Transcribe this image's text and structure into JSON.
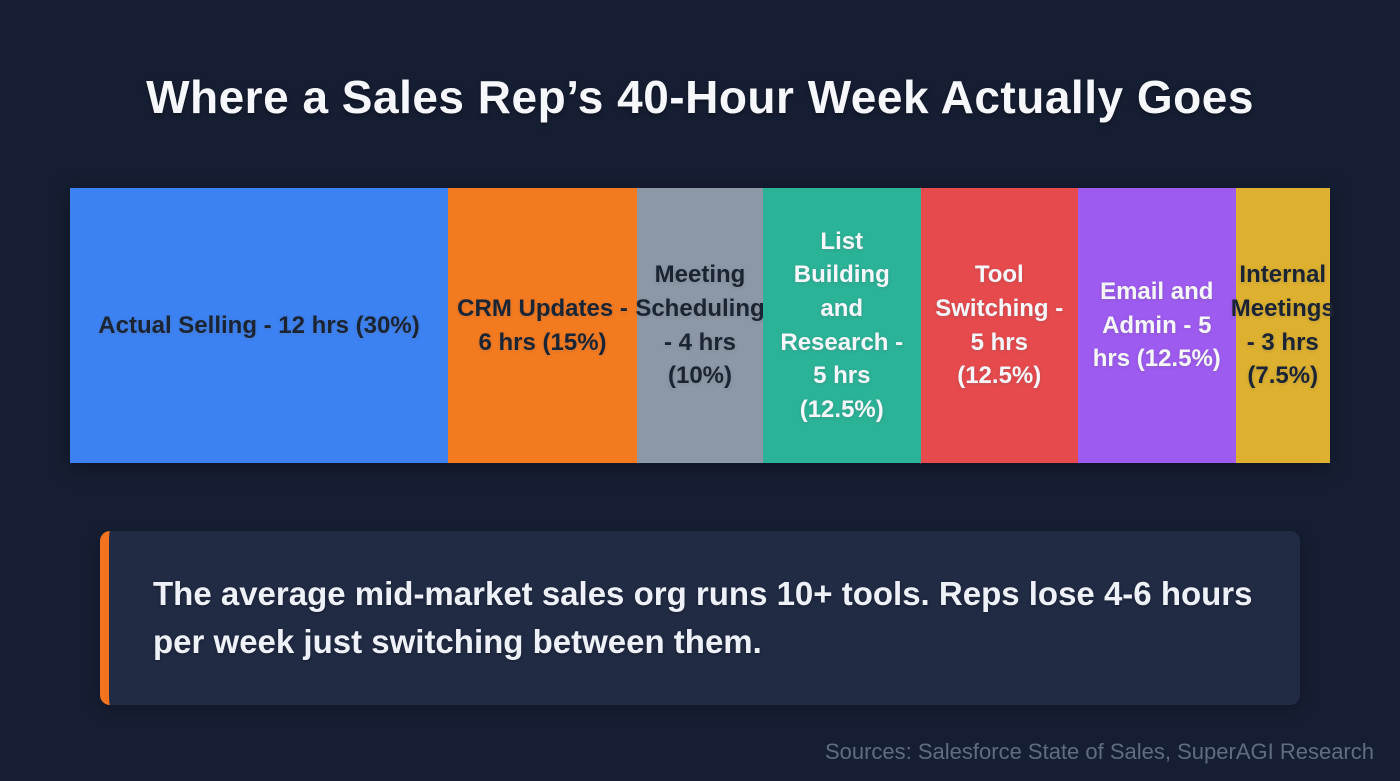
{
  "page": {
    "title": "Where a Sales Rep’s 40-Hour Week Actually Goes",
    "sources": "Sources: Salesforce State of Sales, SuperAGI Research"
  },
  "callout": {
    "text": "The average mid-market sales org runs 10+ tools. Reps lose 4-6 hours per week just switching between them.",
    "accent_color": "#f4731f"
  },
  "chart_data": {
    "type": "bar",
    "variant": "100-percent-stacked-horizontal",
    "title": "Where a Sales Rep’s 40-Hour Week Actually Goes",
    "total_hours": 40,
    "unit": "hours",
    "legend": "labels-inside-segments",
    "segments": [
      {
        "category": "Actual Selling",
        "label": "Actual Selling - 12 hrs (30%)",
        "hours": 12,
        "percent": 30,
        "color": "#3d82f2",
        "text_color": "#1a2433"
      },
      {
        "category": "CRM Updates",
        "label": "CRM Updates - 6 hrs (15%)",
        "hours": 6,
        "percent": 15,
        "color": "#f47a20",
        "text_color": "#1a2433"
      },
      {
        "category": "Meeting Scheduling",
        "label": "Meeting Scheduling - 4 hrs (10%)",
        "hours": 4,
        "percent": 10,
        "color": "#8d98a7",
        "text_color": "#1a2433"
      },
      {
        "category": "List Building and Research",
        "label": "List Building and Research - 5 hrs (12.5%)",
        "hours": 5,
        "percent": 12.5,
        "color": "#2bb398",
        "text_color": "#f5f7fa"
      },
      {
        "category": "Tool Switching",
        "label": "Tool Switching - 5 hrs (12.5%)",
        "hours": 5,
        "percent": 12.5,
        "color": "#e64a4d",
        "text_color": "#f5f7fa"
      },
      {
        "category": "Email and Admin",
        "label": "Email and Admin - 5 hrs (12.5%)",
        "hours": 5,
        "percent": 12.5,
        "color": "#9e5bf0",
        "text_color": "#f5f7fa"
      },
      {
        "category": "Internal Meetings",
        "label": "Internal Meetings - 3 hrs (7.5%)",
        "hours": 3,
        "percent": 7.5,
        "color": "#ddb02f",
        "text_color": "#1a2433"
      }
    ]
  }
}
